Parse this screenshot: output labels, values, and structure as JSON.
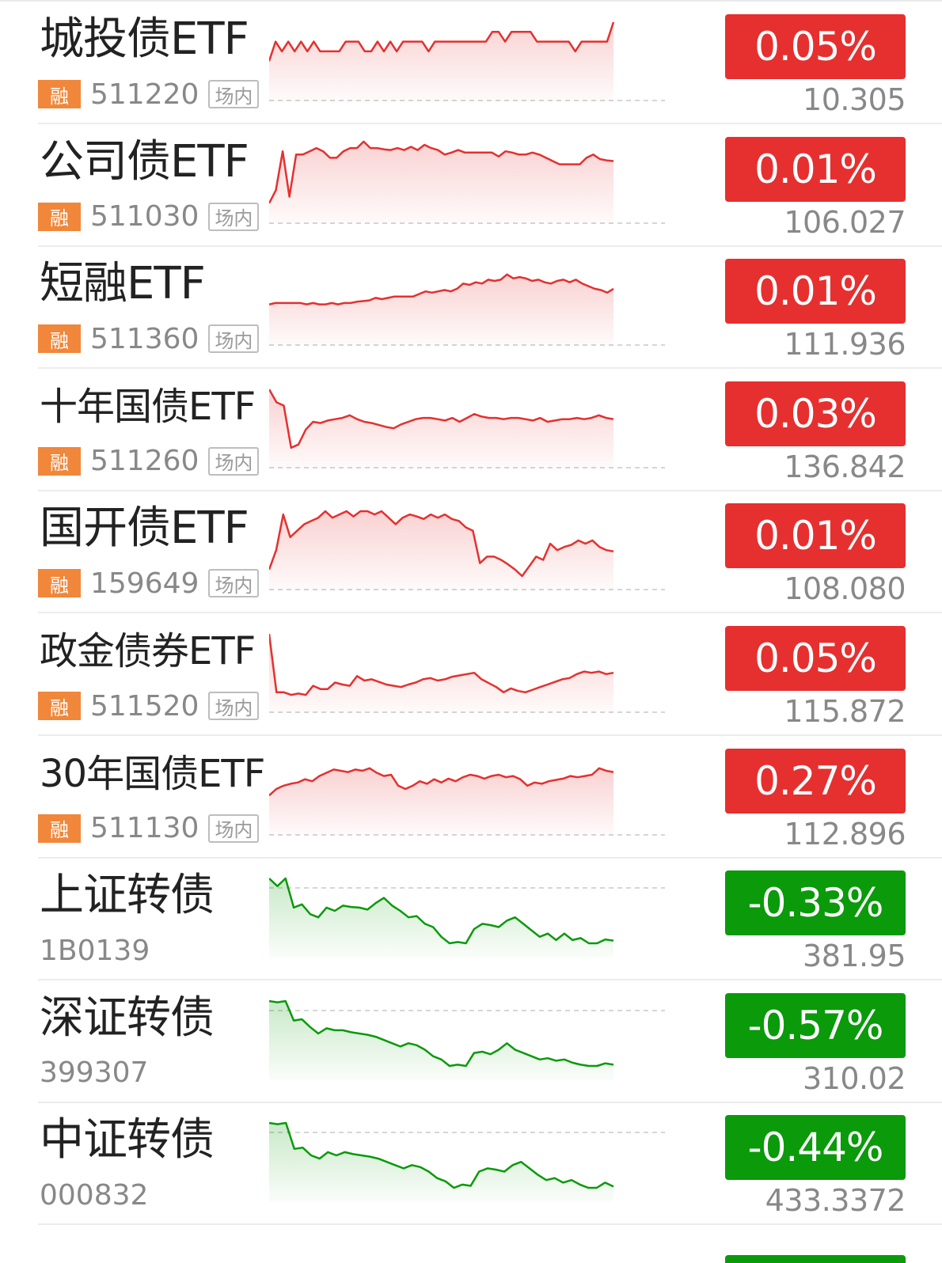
{
  "colors": {
    "up": "#e5302f",
    "down": "#0a9a0a",
    "margin_tag": "#f0873a"
  },
  "icons": {
    "margin_tag": "rong-tag-icon"
  },
  "rows": [
    {
      "name": "城投债ETF",
      "margin_tag": "融",
      "code": "511220",
      "exchange": "场内",
      "change": "0.05%",
      "price": "10.305",
      "direction": "up",
      "series": [
        40,
        70,
        55,
        70,
        55,
        70,
        55,
        70,
        55,
        55,
        55,
        55,
        70,
        70,
        70,
        55,
        55,
        70,
        55,
        70,
        55,
        70,
        70,
        70,
        70,
        55,
        70,
        70,
        70,
        70,
        70,
        70,
        70,
        70,
        70,
        85,
        85,
        70,
        85,
        85,
        85,
        85,
        70,
        70,
        70,
        70,
        70,
        70,
        55,
        70,
        70,
        70,
        70,
        70,
        100
      ]
    },
    {
      "name": "公司债ETF",
      "margin_tag": "融",
      "code": "511030",
      "exchange": "场内",
      "change": "0.01%",
      "price": "106.027",
      "direction": "up",
      "series": [
        10,
        30,
        90,
        20,
        85,
        85,
        90,
        95,
        90,
        80,
        80,
        90,
        95,
        95,
        105,
        95,
        95,
        93,
        92,
        95,
        92,
        97,
        92,
        100,
        95,
        92,
        85,
        88,
        92,
        88,
        88,
        88,
        88,
        88,
        82,
        90,
        88,
        85,
        85,
        88,
        85,
        80,
        75,
        70,
        70,
        70,
        70,
        80,
        85,
        78,
        76,
        75
      ]
    },
    {
      "name": "短融ETF",
      "margin_tag": "融",
      "code": "511360",
      "exchange": "场内",
      "change": "0.01%",
      "price": "111.936",
      "direction": "up",
      "series": [
        42,
        44,
        44,
        44,
        44,
        44,
        42,
        44,
        42,
        42,
        44,
        42,
        44,
        44,
        46,
        47,
        48,
        52,
        50,
        52,
        54,
        54,
        54,
        54,
        58,
        62,
        60,
        62,
        64,
        62,
        66,
        74,
        72,
        76,
        74,
        80,
        78,
        80,
        88,
        82,
        84,
        82,
        78,
        80,
        76,
        74,
        78,
        80,
        76,
        80,
        74,
        70,
        66,
        64,
        60,
        66
      ]
    },
    {
      "name": "十年国债ETF",
      "margin_tag": "融",
      "code": "511260",
      "exchange": "场内",
      "change": "0.03%",
      "price": "136.842",
      "direction": "up",
      "series": [
        100,
        80,
        75,
        10,
        15,
        38,
        50,
        48,
        52,
        54,
        56,
        60,
        54,
        50,
        48,
        45,
        42,
        40,
        46,
        50,
        54,
        56,
        56,
        54,
        52,
        56,
        50,
        56,
        62,
        58,
        56,
        56,
        54,
        56,
        56,
        54,
        52,
        56,
        50,
        52,
        54,
        54,
        56,
        54,
        56,
        60,
        56,
        54
      ]
    },
    {
      "name": "国开债ETF",
      "margin_tag": "融",
      "code": "159649",
      "exchange": "场内",
      "change": "0.01%",
      "price": "108.080",
      "direction": "up",
      "series": [
        10,
        40,
        95,
        60,
        70,
        80,
        85,
        90,
        100,
        90,
        95,
        100,
        92,
        100,
        100,
        95,
        100,
        90,
        80,
        90,
        95,
        92,
        88,
        95,
        90,
        95,
        88,
        85,
        75,
        70,
        20,
        30,
        30,
        25,
        18,
        10,
        0,
        15,
        30,
        25,
        50,
        40,
        45,
        48,
        55,
        50,
        55,
        45,
        40,
        38
      ]
    },
    {
      "name": "政金债券ETF",
      "margin_tag": "融",
      "code": "511520",
      "exchange": "场内",
      "change": "0.05%",
      "price": "115.872",
      "direction": "up",
      "series": [
        100,
        10,
        10,
        6,
        8,
        6,
        20,
        15,
        15,
        25,
        22,
        20,
        35,
        28,
        30,
        26,
        22,
        20,
        18,
        22,
        25,
        30,
        32,
        28,
        30,
        34,
        36,
        38,
        40,
        30,
        24,
        18,
        10,
        16,
        12,
        10,
        14,
        18,
        22,
        26,
        30,
        32,
        38,
        42,
        40,
        42,
        38,
        40
      ]
    },
    {
      "name": "30年国债ETF",
      "margin_tag": "融",
      "code": "511130",
      "exchange": "场内",
      "change": "0.27%",
      "price": "112.896",
      "direction": "up",
      "series": [
        40,
        50,
        55,
        58,
        60,
        65,
        62,
        70,
        75,
        80,
        78,
        76,
        80,
        78,
        82,
        75,
        70,
        72,
        55,
        50,
        55,
        62,
        58,
        65,
        60,
        66,
        62,
        68,
        72,
        70,
        66,
        70,
        72,
        68,
        70,
        65,
        55,
        60,
        58,
        62,
        64,
        66,
        70,
        68,
        70,
        72,
        82,
        78,
        76
      ]
    },
    {
      "name": "上证转债",
      "code": "1B0139",
      "change": "-0.33%",
      "price": "381.95",
      "direction": "down",
      "series": [
        100,
        88,
        100,
        55,
        60,
        45,
        40,
        55,
        50,
        58,
        56,
        55,
        52,
        62,
        70,
        58,
        50,
        40,
        42,
        30,
        25,
        10,
        0,
        2,
        0,
        22,
        30,
        28,
        25,
        35,
        40,
        30,
        20,
        10,
        15,
        5,
        15,
        5,
        8,
        0,
        0,
        6,
        4
      ]
    },
    {
      "name": "深证转债",
      "code": "399307",
      "change": "-0.57%",
      "price": "310.02",
      "direction": "down",
      "series": [
        100,
        98,
        100,
        70,
        72,
        60,
        50,
        58,
        55,
        55,
        52,
        50,
        48,
        45,
        40,
        35,
        30,
        35,
        32,
        25,
        15,
        10,
        0,
        2,
        0,
        20,
        22,
        18,
        25,
        35,
        25,
        20,
        15,
        10,
        12,
        8,
        10,
        5,
        2,
        0,
        0,
        4,
        2
      ]
    },
    {
      "name": "中证转债",
      "code": "000832",
      "change": "-0.44%",
      "price": "433.3372",
      "direction": "down",
      "series": [
        100,
        98,
        100,
        60,
        62,
        50,
        45,
        55,
        50,
        55,
        52,
        50,
        48,
        45,
        40,
        35,
        30,
        35,
        32,
        25,
        15,
        10,
        0,
        5,
        3,
        25,
        30,
        28,
        25,
        35,
        40,
        30,
        20,
        12,
        15,
        8,
        12,
        5,
        0,
        0,
        8,
        2
      ]
    }
  ]
}
